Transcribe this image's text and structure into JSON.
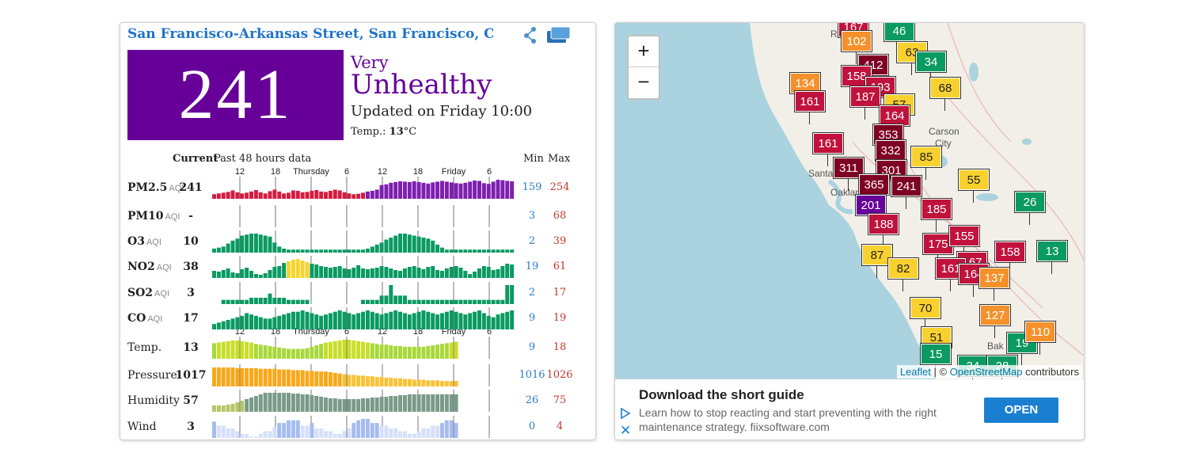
{
  "station": {
    "city": "San Francisco-Arkansas Street, San Francisco, California",
    "aqi": "241",
    "level_line1": "Very",
    "level_line2": "Unhealthy",
    "updated": "Updated on Friday 10:00",
    "temp_prefix": "Temp.: ",
    "temp_value": "13",
    "temp_unit": "°C",
    "aqi_color": "#660099"
  },
  "history": {
    "current_label": "Current",
    "past_label": "Past 48 hours data",
    "min_label": "Min",
    "max_label": "Max",
    "time_ticks": [
      "12",
      "18",
      "Thursday",
      "6",
      "12",
      "18",
      "Friday",
      "6"
    ],
    "rows": [
      {
        "name": "PM2.5",
        "unit": "AQI",
        "current": "241",
        "min": "159",
        "max": "254",
        "values": [
          12,
          14,
          16,
          18,
          22,
          17,
          14,
          16,
          19,
          23,
          17,
          14,
          20,
          24,
          19,
          14,
          16,
          22,
          21,
          17,
          18,
          21,
          23,
          19,
          18,
          21,
          24,
          22,
          17,
          14,
          12,
          13,
          16,
          19,
          21,
          24,
          36,
          38,
          42,
          44,
          46,
          45,
          44,
          46,
          44,
          42,
          40,
          43,
          45,
          47,
          45,
          43,
          41,
          40,
          42,
          45,
          48,
          47,
          41,
          39,
          45,
          50,
          49,
          47,
          46
        ]
      },
      {
        "name": "PM10",
        "unit": "AQI",
        "current": "-",
        "min": "3",
        "max": "68",
        "values": []
      },
      {
        "name": "O3",
        "unit": "AQI",
        "current": "10",
        "min": "2",
        "max": "39",
        "values": [
          8,
          10,
          12,
          18,
          24,
          28,
          34,
          36,
          38,
          38,
          36,
          34,
          32,
          20,
          12,
          8,
          6,
          6,
          6,
          6,
          6,
          6,
          6,
          6,
          6,
          6,
          6,
          6,
          6,
          6,
          6,
          6,
          6,
          8,
          12,
          16,
          20,
          26,
          30,
          34,
          38,
          38,
          36,
          34,
          32,
          30,
          28,
          24,
          16,
          10,
          6,
          6,
          6,
          6,
          6,
          6,
          6,
          6,
          6,
          6,
          6,
          6,
          6,
          6,
          6
        ]
      },
      {
        "name": "NO2",
        "unit": "AQI",
        "current": "38",
        "min": "19",
        "max": "61",
        "values": [
          18,
          16,
          20,
          24,
          14,
          12,
          22,
          26,
          18,
          10,
          8,
          12,
          20,
          28,
          30,
          38,
          42,
          46,
          48,
          44,
          40,
          36,
          34,
          30,
          28,
          26,
          28,
          30,
          24,
          22,
          26,
          32,
          24,
          22,
          24,
          26,
          30,
          28,
          24,
          20,
          18,
          24,
          28,
          30,
          26,
          22,
          28,
          30,
          20,
          18,
          24,
          28,
          30,
          26,
          18,
          10,
          16,
          24,
          30,
          28,
          20,
          22,
          30,
          36,
          34
        ]
      },
      {
        "name": "SO2",
        "unit": "AQI",
        "current": "3",
        "min": "2",
        "max": "17",
        "values": [
          0,
          0,
          4,
          4,
          4,
          4,
          4,
          4,
          6,
          6,
          6,
          6,
          10,
          6,
          6,
          6,
          4,
          4,
          4,
          4,
          4,
          0,
          0,
          0,
          0,
          0,
          0,
          0,
          0,
          0,
          0,
          0,
          4,
          4,
          4,
          4,
          8,
          8,
          18,
          8,
          8,
          8,
          4,
          4,
          4,
          4,
          4,
          4,
          4,
          4,
          4,
          4,
          4,
          4,
          4,
          4,
          4,
          4,
          4,
          4,
          4,
          4,
          4,
          18,
          18
        ]
      },
      {
        "name": "CO",
        "unit": "AQI",
        "current": "17",
        "min": "9",
        "max": "19",
        "values": [
          8,
          10,
          12,
          14,
          16,
          18,
          20,
          24,
          22,
          20,
          18,
          16,
          16,
          18,
          20,
          22,
          24,
          26,
          26,
          28,
          26,
          24,
          22,
          20,
          22,
          24,
          26,
          28,
          26,
          24,
          22,
          24,
          26,
          28,
          26,
          24,
          22,
          24,
          26,
          28,
          26,
          24,
          22,
          24,
          26,
          28,
          26,
          24,
          22,
          24,
          26,
          28,
          26,
          24,
          22,
          24,
          26,
          28,
          24,
          20,
          18,
          22,
          24,
          26,
          28
        ]
      },
      {
        "name": "Temp.",
        "unit": "",
        "current": "13",
        "min": "9",
        "max": "18",
        "values": [
          22,
          23,
          24,
          25,
          26,
          26,
          25,
          24,
          23,
          21,
          20,
          19,
          18,
          17,
          16,
          15,
          14,
          14,
          14,
          14,
          15,
          17,
          19,
          21,
          23,
          24,
          25,
          26,
          27,
          27,
          26,
          25,
          24,
          23,
          22,
          21,
          20,
          20,
          19,
          18,
          18,
          17,
          17,
          17,
          17,
          17,
          18,
          19,
          20,
          21,
          22,
          23,
          24
        ]
      },
      {
        "name": "Pressure",
        "unit": "",
        "current": "1017",
        "min": "1016",
        "max": "1026",
        "values": [
          28,
          28,
          28,
          28,
          28,
          27,
          27,
          27,
          27,
          27,
          26,
          26,
          26,
          26,
          25,
          25,
          25,
          24,
          24,
          24,
          23,
          23,
          22,
          22,
          22,
          21,
          20,
          19,
          18,
          17,
          17,
          16,
          16,
          15,
          15,
          14,
          14,
          13,
          13,
          12,
          12,
          11,
          11,
          10,
          10,
          10,
          9,
          9,
          9,
          8,
          8,
          8,
          8
        ]
      },
      {
        "name": "Humidity",
        "unit": "",
        "current": "57",
        "min": "26",
        "max": "75",
        "values": [
          8,
          8,
          8,
          9,
          10,
          12,
          14,
          16,
          18,
          20,
          22,
          24,
          24,
          24,
          24,
          24,
          24,
          23,
          23,
          22,
          22,
          21,
          20,
          19,
          18,
          17,
          17,
          16,
          16,
          16,
          16,
          16,
          17,
          17,
          18,
          18,
          19,
          19,
          20,
          20,
          21,
          21,
          22,
          22,
          22,
          22,
          22,
          22,
          22,
          22,
          22,
          22,
          22
        ]
      },
      {
        "name": "Wind",
        "unit": "",
        "current": "3",
        "min": "0",
        "max": "4",
        "values": [
          24,
          18,
          18,
          14,
          14,
          10,
          6,
          6,
          2,
          2,
          6,
          10,
          10,
          16,
          22,
          22,
          26,
          26,
          26,
          18,
          18,
          22,
          14,
          14,
          10,
          10,
          6,
          6,
          10,
          14,
          22,
          26,
          28,
          28,
          22,
          22,
          18,
          18,
          14,
          14,
          10,
          10,
          6,
          6,
          10,
          14,
          14,
          18,
          18,
          22,
          26,
          26,
          22
        ]
      }
    ]
  },
  "map": {
    "zoom_in": "+",
    "zoom_out": "−",
    "attribution_leaflet": "Leaflet",
    "attribution_sep": " | © ",
    "attribution_osm": "OpenStreetMap",
    "attribution_tail": " contributors",
    "place_labels": [
      "Reno",
      "Carson",
      "City",
      "Santa",
      "Oakland",
      "Bak",
      "Sa"
    ],
    "markers": [
      {
        "value": "167",
        "color": "#c0123c"
      },
      {
        "value": "102",
        "color": "#f5912b"
      },
      {
        "value": "46",
        "color": "#0a9a62"
      },
      {
        "value": "63",
        "color": "#f8d12e"
      },
      {
        "value": "34",
        "color": "#0a9a62"
      },
      {
        "value": "412",
        "color": "#7e0023"
      },
      {
        "value": "134",
        "color": "#f5912b"
      },
      {
        "value": "158",
        "color": "#c0123c"
      },
      {
        "value": "193",
        "color": "#c0123c"
      },
      {
        "value": "68",
        "color": "#f8d12e"
      },
      {
        "value": "161",
        "color": "#c0123c"
      },
      {
        "value": "187",
        "color": "#c0123c"
      },
      {
        "value": "57",
        "color": "#f8d12e"
      },
      {
        "value": "164",
        "color": "#c0123c"
      },
      {
        "value": "353",
        "color": "#7e0023"
      },
      {
        "value": "161",
        "color": "#c0123c"
      },
      {
        "value": "332",
        "color": "#7e0023"
      },
      {
        "value": "85",
        "color": "#f8d12e"
      },
      {
        "value": "311",
        "color": "#7e0023"
      },
      {
        "value": "301",
        "color": "#7e0023"
      },
      {
        "value": "55",
        "color": "#f8d12e"
      },
      {
        "value": "365",
        "color": "#7e0023"
      },
      {
        "value": "241",
        "color": "#7e0023"
      },
      {
        "value": "26",
        "color": "#0a9a62"
      },
      {
        "value": "201",
        "color": "#660099"
      },
      {
        "value": "185",
        "color": "#c0123c"
      },
      {
        "value": "188",
        "color": "#c0123c"
      },
      {
        "value": "175",
        "color": "#c0123c"
      },
      {
        "value": "155",
        "color": "#c0123c"
      },
      {
        "value": "158",
        "color": "#c0123c"
      },
      {
        "value": "13",
        "color": "#0a9a62"
      },
      {
        "value": "87",
        "color": "#f8d12e"
      },
      {
        "value": "82",
        "color": "#f8d12e"
      },
      {
        "value": "167",
        "color": "#c0123c"
      },
      {
        "value": "161",
        "color": "#c0123c"
      },
      {
        "value": "164",
        "color": "#c0123c"
      },
      {
        "value": "137",
        "color": "#f5912b"
      },
      {
        "value": "70",
        "color": "#f8d12e"
      },
      {
        "value": "127",
        "color": "#f5912b"
      },
      {
        "value": "51",
        "color": "#f8d12e"
      },
      {
        "value": "15",
        "color": "#0a9a62"
      },
      {
        "value": "19",
        "color": "#0a9a62"
      },
      {
        "value": "110",
        "color": "#f5912b"
      },
      {
        "value": "34",
        "color": "#0a9a62"
      },
      {
        "value": "28",
        "color": "#0a9a62"
      }
    ]
  },
  "ad": {
    "title": "Download the short guide",
    "text": "Learn how to stop reacting and start preventing with the right maintenance strategy. fiixsoftware.com",
    "button": "OPEN"
  }
}
